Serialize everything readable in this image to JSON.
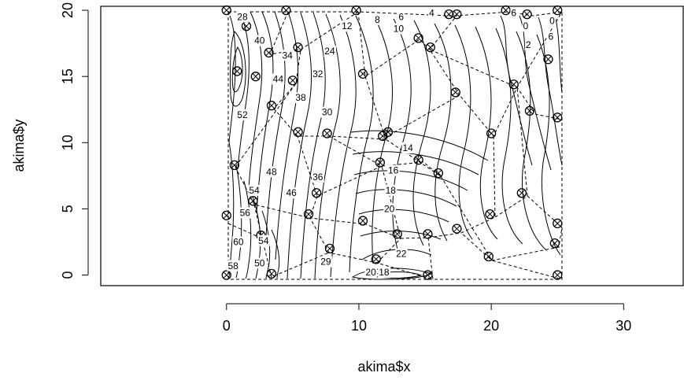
{
  "chart_data": {
    "type": "contour",
    "xlabel": "akima$x",
    "ylabel": "akima$y",
    "xlim": [
      -9.5,
      34.5
    ],
    "ylim": [
      -0.8,
      20.3
    ],
    "x_ticks": [
      0,
      10,
      20,
      30
    ],
    "y_ticks": [
      0,
      5,
      10,
      15,
      20
    ],
    "x_tick_labels": [
      "0",
      "10",
      "20",
      "30"
    ],
    "y_tick_labels": [
      "0",
      "5",
      "10",
      "15",
      "20"
    ],
    "grid": false,
    "contour_labels": [
      {
        "x": 1.2,
        "y": 19.5,
        "text": "28"
      },
      {
        "x": 2.5,
        "y": 17.7,
        "text": "40"
      },
      {
        "x": 4.6,
        "y": 16.6,
        "text": "34"
      },
      {
        "x": 7.8,
        "y": 16.9,
        "text": "24"
      },
      {
        "x": 9.1,
        "y": 18.8,
        "text": "12"
      },
      {
        "x": 11.4,
        "y": 19.3,
        "text": "8"
      },
      {
        "x": 13.2,
        "y": 19.5,
        "text": "6"
      },
      {
        "x": 15.5,
        "y": 19.8,
        "text": "4"
      },
      {
        "x": 6.9,
        "y": 15.2,
        "text": "32"
      },
      {
        "x": 3.9,
        "y": 14.8,
        "text": "44"
      },
      {
        "x": 5.6,
        "y": 13.4,
        "text": "38"
      },
      {
        "x": 1.2,
        "y": 12.1,
        "text": "52"
      },
      {
        "x": 7.6,
        "y": 12.3,
        "text": "30"
      },
      {
        "x": 13.7,
        "y": 9.6,
        "text": "14"
      },
      {
        "x": 12.6,
        "y": 7.9,
        "text": "16"
      },
      {
        "x": 12.4,
        "y": 6.4,
        "text": "18"
      },
      {
        "x": 12.3,
        "y": 5.0,
        "text": "20"
      },
      {
        "x": 3.4,
        "y": 7.8,
        "text": "48"
      },
      {
        "x": 2.1,
        "y": 6.4,
        "text": "54"
      },
      {
        "x": 1.4,
        "y": 4.7,
        "text": "56"
      },
      {
        "x": 4.9,
        "y": 6.2,
        "text": "46"
      },
      {
        "x": 6.9,
        "y": 7.4,
        "text": "36"
      },
      {
        "x": 0.9,
        "y": 2.5,
        "text": "60"
      },
      {
        "x": 2.8,
        "y": 2.6,
        "text": "54"
      },
      {
        "x": 2.5,
        "y": 0.9,
        "text": "50"
      },
      {
        "x": 0.5,
        "y": 0.7,
        "text": "58"
      },
      {
        "x": 7.5,
        "y": 1.0,
        "text": "29"
      },
      {
        "x": 13.2,
        "y": 1.6,
        "text": "22"
      },
      {
        "x": 10.9,
        "y": 0.2,
        "text": "20"
      },
      {
        "x": 11.9,
        "y": 0.2,
        "text": "18"
      },
      {
        "x": 22.6,
        "y": 18.8,
        "text": "0"
      },
      {
        "x": 24.6,
        "y": 19.2,
        "text": "0"
      },
      {
        "x": 22.8,
        "y": 17.4,
        "text": "2"
      },
      {
        "x": 24.5,
        "y": 18.0,
        "text": "6"
      },
      {
        "x": 21.7,
        "y": 19.8,
        "text": "6"
      },
      {
        "x": 13.0,
        "y": 18.6,
        "text": "10"
      }
    ],
    "points": [
      [
        0,
        20
      ],
      [
        4.5,
        20
      ],
      [
        9.8,
        20
      ],
      [
        16.8,
        19.7
      ],
      [
        17.4,
        19.7
      ],
      [
        21.1,
        20
      ],
      [
        22.7,
        19.7
      ],
      [
        25,
        20
      ],
      [
        1.5,
        18.8
      ],
      [
        14.5,
        17.9
      ],
      [
        15.4,
        17.2
      ],
      [
        5.4,
        17.2
      ],
      [
        3.2,
        16.8
      ],
      [
        24.3,
        16.3
      ],
      [
        0.8,
        15.4
      ],
      [
        2.2,
        15.0
      ],
      [
        5.0,
        14.7
      ],
      [
        10.3,
        15.2
      ],
      [
        21.7,
        14.4
      ],
      [
        17.3,
        13.8
      ],
      [
        3.4,
        12.8
      ],
      [
        22.9,
        12.4
      ],
      [
        25,
        11.9
      ],
      [
        5.4,
        10.8
      ],
      [
        7.6,
        10.7
      ],
      [
        11.8,
        10.5
      ],
      [
        12.2,
        10.8
      ],
      [
        20.0,
        10.7
      ],
      [
        11.6,
        8.5
      ],
      [
        14.5,
        8.7
      ],
      [
        16.0,
        7.7
      ],
      [
        0.6,
        8.3
      ],
      [
        6.8,
        6.2
      ],
      [
        22.3,
        6.2
      ],
      [
        2.0,
        5.6
      ],
      [
        6.2,
        4.6
      ],
      [
        19.9,
        4.6
      ],
      [
        0,
        4.5
      ],
      [
        10.3,
        4.1
      ],
      [
        25,
        3.9
      ],
      [
        17.4,
        3.5
      ],
      [
        2.6,
        3.0
      ],
      [
        12.9,
        3.1
      ],
      [
        15.2,
        3.1
      ],
      [
        24.8,
        2.4
      ],
      [
        7.8,
        2.0
      ],
      [
        11.3,
        1.2
      ],
      [
        19.8,
        1.4
      ],
      [
        0,
        0
      ],
      [
        3.4,
        0.1
      ],
      [
        15.2,
        0
      ],
      [
        25,
        0
      ]
    ]
  }
}
